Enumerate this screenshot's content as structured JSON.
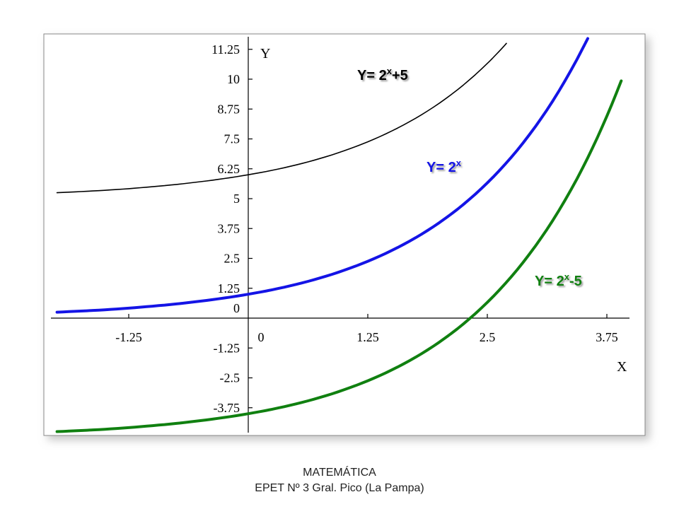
{
  "chart_data": {
    "type": "line",
    "xlabel": "X",
    "ylabel": "Y",
    "xlim": [
      -2.02,
      3.9
    ],
    "ylim": [
      -4.7,
      11.95
    ],
    "x_ticks": [
      -1.25,
      0,
      1.25,
      2.5,
      3.75
    ],
    "x_tick_labels": [
      "-1.25",
      "0",
      "1.25",
      "2.5",
      "3.75"
    ],
    "y_ticks": [
      -3.75,
      -2.5,
      -1.25,
      0,
      1.25,
      2.5,
      3.75,
      5,
      6.25,
      7.5,
      8.75,
      10,
      11.25
    ],
    "y_tick_labels": [
      "-3.75",
      "-2.5",
      "-1.25",
      "0",
      "1.25",
      "2.5",
      "3.75",
      "5",
      "6.25",
      "7.5",
      "8.75",
      "10",
      "11.25"
    ],
    "grid": false,
    "series": [
      {
        "name": "Y= 2x+5",
        "label_base": "Y= 2",
        "label_sup": "x",
        "label_tail": "+5",
        "color": "#000000",
        "stroke": 1.6,
        "x": [
          -2,
          -1.5,
          -1,
          -0.5,
          0,
          0.5,
          1,
          1.5,
          2,
          2.5,
          2.7
        ],
        "y": [
          5.25,
          5.35,
          5.5,
          5.71,
          6,
          6.41,
          7,
          7.83,
          9,
          10.66,
          11.5
        ]
      },
      {
        "name": "Y= 2x",
        "label_base": "Y= 2",
        "label_sup": "x",
        "label_tail": "",
        "color": "#1414e6",
        "stroke": 4,
        "x": [
          -2,
          -1.5,
          -1,
          -0.5,
          0,
          0.5,
          1,
          1.5,
          2,
          2.5,
          3,
          3.5,
          3.55
        ],
        "y": [
          0.25,
          0.35,
          0.5,
          0.71,
          1,
          1.41,
          2,
          2.83,
          4,
          5.66,
          8,
          11.31,
          11.7
        ]
      },
      {
        "name": "Y= 2x-5",
        "label_base": "Y= 2",
        "label_sup": "x",
        "label_tail": "-5",
        "color": "#108010",
        "stroke": 4,
        "x": [
          -2,
          -1.5,
          -1,
          -0.5,
          0,
          0.5,
          1,
          1.5,
          2,
          2.5,
          3,
          3.5,
          3.9
        ],
        "y": [
          -4.75,
          -4.65,
          -4.5,
          -4.29,
          -4,
          -3.59,
          -3,
          -2.17,
          -1,
          0.66,
          3,
          6.31,
          9.93
        ]
      }
    ]
  },
  "footer": {
    "line1": "MATEMÁTICA",
    "line2": "EPET Nº 3 Gral. Pico (La Pampa)"
  }
}
